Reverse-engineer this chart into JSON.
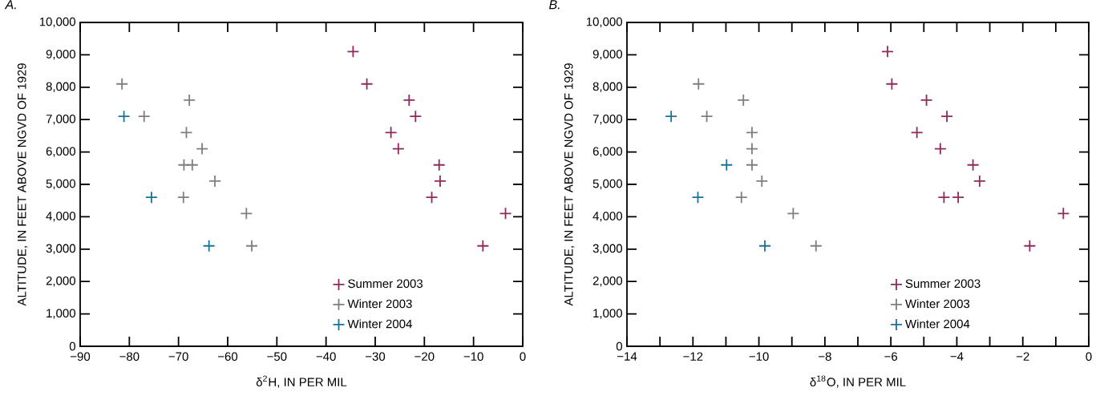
{
  "chart_data": [
    {
      "type": "scatter",
      "title": "A.",
      "xlabel": "δ$^{2}$H, IN PER MIL",
      "ylabel": "ALTITUDE, IN FEET ABOVE NGVD OF 1929",
      "marker": "cross",
      "legend": "bottom",
      "xlim": [
        -90,
        0
      ],
      "ylim": [
        0,
        10000
      ],
      "xticks": [
        {
          "value": -90,
          "label": "−90"
        },
        {
          "value": -80,
          "label": "−80"
        },
        {
          "value": -70,
          "label": "−70"
        },
        {
          "value": -60,
          "label": "−60"
        },
        {
          "value": -50,
          "label": "−50"
        },
        {
          "value": -40,
          "label": "−40"
        },
        {
          "value": -30,
          "label": "−30"
        },
        {
          "value": -20,
          "label": "−20"
        },
        {
          "value": -10,
          "label": "−10"
        },
        0
      ],
      "yticks": [
        0,
        {
          "value": 1000,
          "label": "1,000"
        },
        {
          "value": 2000,
          "label": "2,000"
        },
        {
          "value": 3000,
          "label": "3,000"
        },
        {
          "value": 4000,
          "label": "4,000"
        },
        {
          "value": 5000,
          "label": "5,000"
        },
        {
          "value": 6000,
          "label": "6,000"
        },
        {
          "value": 7000,
          "label": "7,000"
        },
        {
          "value": 8000,
          "label": "8,000"
        },
        {
          "value": 9000,
          "label": "9,000"
        },
        {
          "value": 10000,
          "label": "10,000"
        }
      ],
      "series": [
        {
          "name": "Summer 2003",
          "color": "#8e2a5c",
          "x": [
            -34.5,
            -31.7,
            -23.1,
            -21.8,
            -26.8,
            -25.3,
            -17.0,
            -16.8,
            -18.5,
            -3.5,
            -8.1
          ],
          "values": [
            9100,
            8100,
            7600,
            7100,
            6600,
            6100,
            5600,
            5100,
            4600,
            4100,
            3100
          ]
        },
        {
          "name": "Winter 2003",
          "color": "#7f7f7f",
          "x": [
            -81.5,
            -77.0,
            -67.8,
            -68.4,
            -65.2,
            -68.9,
            -67.2,
            -62.6,
            -69.0,
            -56.2,
            -55.1
          ],
          "values": [
            8100,
            7100,
            7600,
            6600,
            6100,
            5600,
            5600,
            5100,
            4600,
            4100,
            3100
          ]
        },
        {
          "name": "Winter 2004",
          "color": "#1a7396",
          "x": [
            -81.1,
            -75.5,
            -63.8
          ],
          "values": [
            7100,
            4600,
            3100
          ]
        }
      ]
    },
    {
      "type": "scatter",
      "title": "B.",
      "xlabel": "δ$^{18}$O, IN PER MIL",
      "ylabel": "ALTITUDE, IN FEET ABOVE NGVD OF 1929",
      "marker": "cross",
      "legend": "bottom",
      "xlim": [
        -14,
        0
      ],
      "ylim": [
        0,
        10000
      ],
      "xticks": [
        {
          "value": -14,
          "label": "−14"
        },
        {
          "value": -13,
          "label": null
        },
        {
          "value": -12,
          "label": "−12"
        },
        {
          "value": -11,
          "label": null
        },
        {
          "value": -10,
          "label": "−10"
        },
        {
          "value": -9,
          "label": null
        },
        {
          "value": -8,
          "label": "−8"
        },
        {
          "value": -7,
          "label": null
        },
        {
          "value": -6,
          "label": "−6"
        },
        {
          "value": -5,
          "label": null
        },
        {
          "value": -4,
          "label": "−4"
        },
        {
          "value": -3,
          "label": null
        },
        {
          "value": -2,
          "label": "−2"
        },
        {
          "value": -1,
          "label": null
        },
        0
      ],
      "yticks": [
        0,
        {
          "value": 1000,
          "label": "1,000"
        },
        {
          "value": 2000,
          "label": "2,000"
        },
        {
          "value": 3000,
          "label": "3,000"
        },
        {
          "value": 4000,
          "label": "4,000"
        },
        {
          "value": 5000,
          "label": "5,000"
        },
        {
          "value": 6000,
          "label": "6,000"
        },
        {
          "value": 7000,
          "label": "7,000"
        },
        {
          "value": 8000,
          "label": "8,000"
        },
        {
          "value": 9000,
          "label": "9,000"
        },
        {
          "value": 10000,
          "label": "10,000"
        }
      ],
      "series": [
        {
          "name": "Summer 2003",
          "color": "#8e2a5c",
          "x": [
            -6.1,
            -5.97,
            -4.92,
            -4.3,
            -5.21,
            -4.5,
            -3.51,
            -3.31,
            -4.39,
            -3.96,
            -0.77,
            -1.79
          ],
          "values": [
            9100,
            8100,
            7600,
            7100,
            6600,
            6100,
            5600,
            5100,
            4600,
            4600,
            4100,
            3100
          ]
        },
        {
          "name": "Winter 2003",
          "color": "#7f7f7f",
          "x": [
            -11.83,
            -10.47,
            -11.58,
            -10.21,
            -10.21,
            -10.21,
            -9.91,
            -10.53,
            -8.96,
            -8.27
          ],
          "values": [
            8100,
            7600,
            7100,
            6600,
            6100,
            5600,
            5100,
            4600,
            4100,
            3100
          ]
        },
        {
          "name": "Winter 2004",
          "color": "#1a7396",
          "x": [
            -12.66,
            -10.98,
            -11.85,
            -9.82
          ],
          "values": [
            7100,
            5600,
            4600,
            3100
          ]
        }
      ]
    }
  ]
}
